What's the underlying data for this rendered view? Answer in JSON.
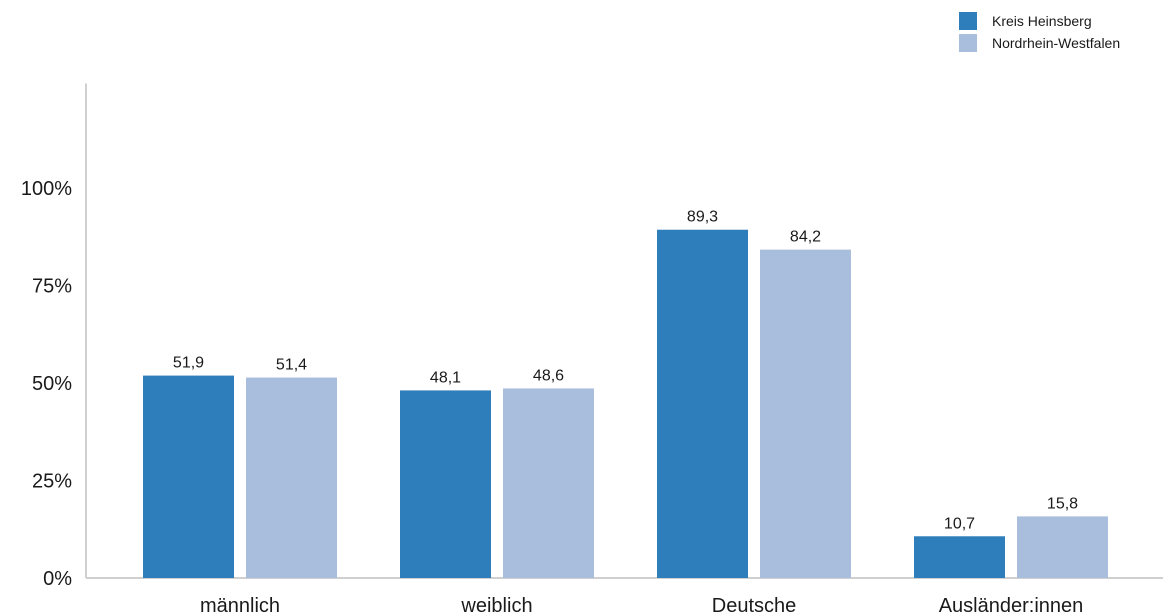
{
  "chart_data": {
    "type": "bar",
    "categories": [
      "männlich",
      "weiblich",
      "Deutsche",
      "Ausländer:innen"
    ],
    "series": [
      {
        "name": "Kreis Heinsberg",
        "color": "#2e7ebb",
        "values": [
          51.9,
          48.1,
          89.3,
          10.7
        ],
        "labels": [
          "51,9",
          "48,1",
          "89,3",
          "10,7"
        ]
      },
      {
        "name": "Nordrhein-Westfalen",
        "color": "#a9bedd",
        "values": [
          51.4,
          48.6,
          84.2,
          15.8
        ],
        "labels": [
          "51,4",
          "48,6",
          "84,2",
          "15,8"
        ]
      }
    ],
    "yticks": [
      {
        "value": 0,
        "label": "0%"
      },
      {
        "value": 25,
        "label": "25%"
      },
      {
        "value": 50,
        "label": "50%"
      },
      {
        "value": 75,
        "label": "75%"
      },
      {
        "value": 100,
        "label": "100%"
      }
    ],
    "ylim": [
      0,
      125
    ],
    "grid": false,
    "legend_position": "top-right",
    "axis_color": "#d0d0d0"
  }
}
